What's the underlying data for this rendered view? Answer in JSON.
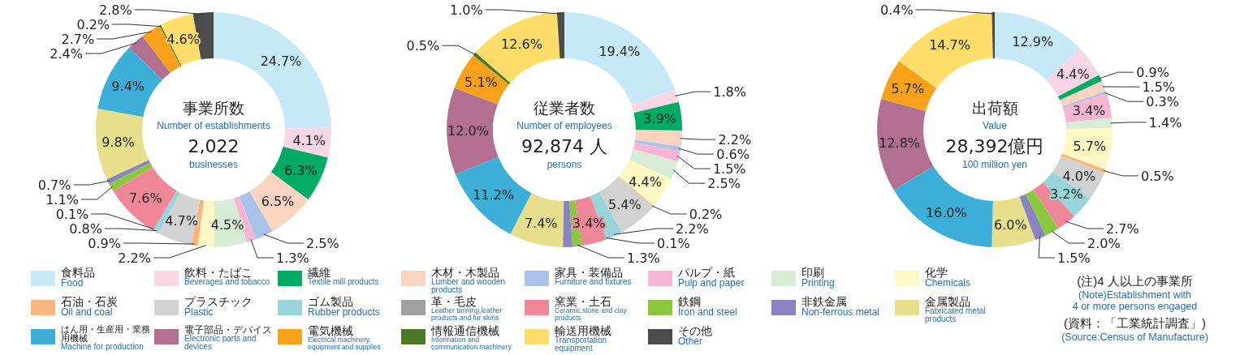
{
  "chart_data": [
    {
      "type": "donut",
      "title": "事業所数",
      "subtitle": "Number of establishments",
      "annotations": [
        "2,022",
        "businesses"
      ],
      "legend": "bottom",
      "categories": [
        "食料品\nFood",
        "飲料・たばこ\nBeverages and tobacco",
        "繊維\nTextile mill products",
        "木材・木製品\nLumber and wooden products",
        "家具・装備品\nFurniture and fixtures",
        "パルプ・紙\nPulp and paper",
        "印刷\nPrinting",
        "化学\nChemicals",
        "石油・石炭\nOil and coal",
        "プラスチック\nPlastic",
        "ゴム製品\nRubber products",
        "革・毛皮\nLeather tanning,leather products and fur skins",
        "窯業・土石\nCeramic,stone and clay products",
        "鉄鋼\nIron and steel",
        "非鉄金属\nNon-ferrous metal",
        "金属製品\nFabricated metal products",
        "はん用・生産用・業務用機械\nMachine for production",
        "電子部品・デバイス\nElectronic parts and devices",
        "電気機械\nElectrical machinery, equipment and supplies",
        "情報通信機械\nInformation and communication machinery",
        "輸送用機械\nTransportation equipment",
        "その他\nOther"
      ],
      "colors": [
        "#c6e9f8",
        "#f9d5e6",
        "#00ab63",
        "#fbd3c1",
        "#a9c3e8",
        "#f6b6d3",
        "#d7ecd5",
        "#fff8c4",
        "#fbb680",
        "#d1d2d3",
        "#97d5da",
        "#a0a0a3",
        "#f08799",
        "#8dc63f",
        "#8984c1",
        "#e8df8c",
        "#3caed8",
        "#b36f8f",
        "#f8a21b",
        "#4b7a27",
        "#fedd6b",
        "#4b4b4d"
      ],
      "values": [
        24.7,
        4.1,
        6.3,
        6.5,
        2.5,
        1.3,
        4.5,
        2.2,
        0.9,
        4.7,
        0.8,
        0.1,
        7.6,
        1.1,
        0.7,
        9.8,
        9.4,
        2.4,
        2.7,
        0.2,
        4.6,
        2.8
      ],
      "value_labels": [
        "24.7%",
        "4.1%",
        "6.3%",
        "6.5%",
        "2.5%",
        "1.3%",
        "4.5%",
        "2.2%",
        "0.9%",
        "4.7%",
        "0.8%",
        "0.1%",
        "7.6%",
        "1.1%",
        "0.7%",
        "9.8%",
        "9.4%",
        "2.4%",
        "2.7%",
        "0.2%",
        "4.6%",
        "2.8%"
      ]
    },
    {
      "type": "donut",
      "title": "従業者数",
      "subtitle": "Number of employees",
      "annotations": [
        "92,874 人",
        "persons"
      ],
      "values": [
        19.4,
        1.8,
        3.9,
        2.2,
        0.6,
        1.5,
        2.5,
        4.4,
        0.2,
        5.4,
        2.2,
        0.1,
        3.4,
        1.3,
        1.3,
        7.4,
        11.2,
        12.0,
        5.1,
        0.5,
        12.6,
        1.0
      ],
      "value_labels": [
        "19.4%",
        "1.8%",
        "3.9%",
        "2.2%",
        "0.6%",
        "1.5%",
        "2.5%",
        "4.4%",
        "0.2%",
        "5.4%",
        "2.2%",
        "0.1%",
        "3.4%",
        "1.3%",
        null,
        "7.4%",
        "11.2%",
        "12.0%",
        "5.1%",
        "0.5%",
        "12.6%",
        "1.0%"
      ]
    },
    {
      "type": "donut",
      "title": "出荷額",
      "subtitle": "Value",
      "annotations": [
        "28,392億円",
        "100 million yen",
        "(注)4 人以上の事業所",
        "(Note)Establishment with\n4 or more persons engaged",
        "(資料：「工業統計調査」)",
        "(Source:Census of Manufacture)"
      ],
      "values": [
        12.9,
        4.4,
        0.9,
        1.5,
        0.3,
        3.4,
        1.4,
        5.7,
        0.5,
        4.0,
        3.2,
        0,
        2.7,
        2.0,
        1.5,
        6.0,
        16.0,
        12.8,
        5.7,
        0,
        14.7,
        0.4
      ],
      "value_labels": [
        "12.9%",
        "4.4%",
        "0.9%",
        "1.5%",
        "0.3%",
        "3.4%",
        "1.4%",
        "5.7%",
        "0.5%",
        "4.0%",
        "3.2%",
        null,
        "2.7%",
        "2.0%",
        "1.5%",
        "6.0%",
        "16.0%",
        "12.8%",
        "5.7%",
        null,
        "14.7%",
        "0.4%"
      ]
    }
  ]
}
